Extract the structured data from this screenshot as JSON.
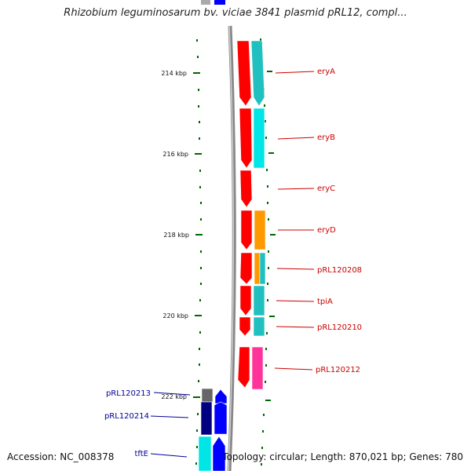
{
  "title": "Rhizobium leguminosarum bv. viciae 3841 plasmid pRL12, compl...",
  "footer": {
    "accession": "Accession: NC_008378",
    "summary": "Topology: circular; Length: 870,021 bp; Genes: 780"
  },
  "scale_labels": [
    "214 kbp",
    "216 kbp",
    "218 kbp",
    "220 kbp",
    "222 kbp"
  ],
  "genes": [
    {
      "label": "eryA",
      "color": "#cc0000"
    },
    {
      "label": "eryB",
      "color": "#cc0000"
    },
    {
      "label": "eryC",
      "color": "#cc0000"
    },
    {
      "label": "eryD",
      "color": "#cc0000"
    },
    {
      "label": "pRL120208",
      "color": "#cc0000"
    },
    {
      "label": "tpiA",
      "color": "#cc0000"
    },
    {
      "label": "pRL120210",
      "color": "#cc0000"
    },
    {
      "label": "pRL120212",
      "color": "#cc0000"
    },
    {
      "label": "pRL120213",
      "color": "#000099"
    },
    {
      "label": "pRL120214",
      "color": "#000099"
    },
    {
      "label": "tftE",
      "color": "#000099"
    }
  ],
  "colors": {
    "forward_strand": "#ff0000",
    "reverse_strand": "#0000ff",
    "cog_cyan": "#00e5e5",
    "cog_teal": "#20c0c0",
    "cog_orange": "#ff9900",
    "cog_pink": "#ff3399",
    "cog_navy": "#000080",
    "cog_grey": "#666666",
    "backbone": "#888888",
    "tick": "#006600"
  }
}
